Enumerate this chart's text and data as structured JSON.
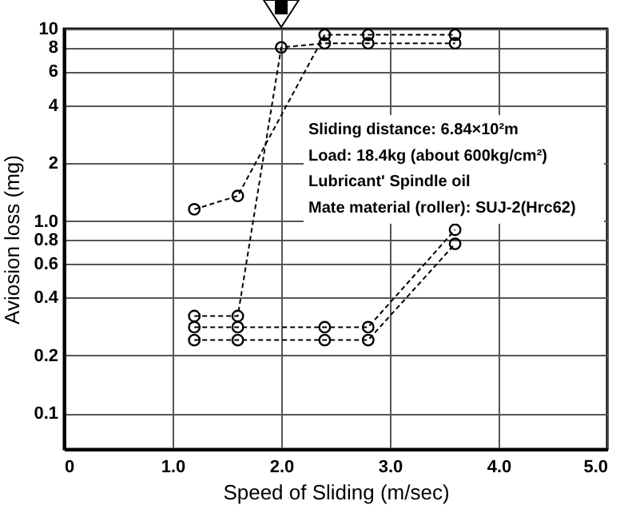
{
  "chart_data": {
    "type": "line",
    "xlabel": "Speed of Sliding (m/sec)",
    "ylabel": "Aviosion loss (mg)",
    "log": "y",
    "grid": true,
    "marker": "circle",
    "line_style": "dashed",
    "xlim": [
      0,
      5
    ],
    "xticks": [
      0,
      {
        "value": 1,
        "label": "1.0"
      },
      {
        "value": 2,
        "label": "2.0"
      },
      {
        "value": 3,
        "label": "3.0"
      },
      {
        "value": 4,
        "label": "4.0"
      },
      {
        "value": 5,
        "label": "5.0"
      }
    ],
    "ylim": [
      0.065,
      10
    ],
    "yticks": [
      10,
      8,
      6,
      4,
      2,
      {
        "value": 1,
        "label": "1.0"
      },
      0.8,
      0.6,
      0.4,
      0.2,
      0.1
    ],
    "annotations": [
      "Sliding distance: 6.84×10²m",
      "Load: 18.4kg (about 600kg/cm²)",
      "Lubricant' Spindle oil",
      "Mate material (roller): SUJ-2(Hrc62)"
    ],
    "series": [
      {
        "color": "#000000",
        "x": [
          1.2,
          1.6,
          2.4,
          2.8,
          3.6
        ],
        "values": [
          1.15,
          1.35,
          9.3,
          9.3,
          9.3
        ]
      },
      {
        "color": "#000000",
        "x": [
          1.2,
          1.6,
          2.0,
          2.4,
          2.8,
          3.6
        ],
        "values": [
          0.32,
          0.32,
          8,
          8.4,
          8.4,
          8.4
        ]
      },
      {
        "color": "#000000",
        "x": [
          1.2,
          1.6,
          2.4,
          2.8,
          3.6
        ],
        "values": [
          0.28,
          0.28,
          0.28,
          0.28,
          0.9
        ]
      },
      {
        "color": "#000000",
        "x": [
          1.2,
          1.6,
          2.4,
          2.8,
          3.6
        ],
        "values": [
          0.24,
          0.24,
          0.24,
          0.24,
          0.76
        ]
      }
    ]
  }
}
